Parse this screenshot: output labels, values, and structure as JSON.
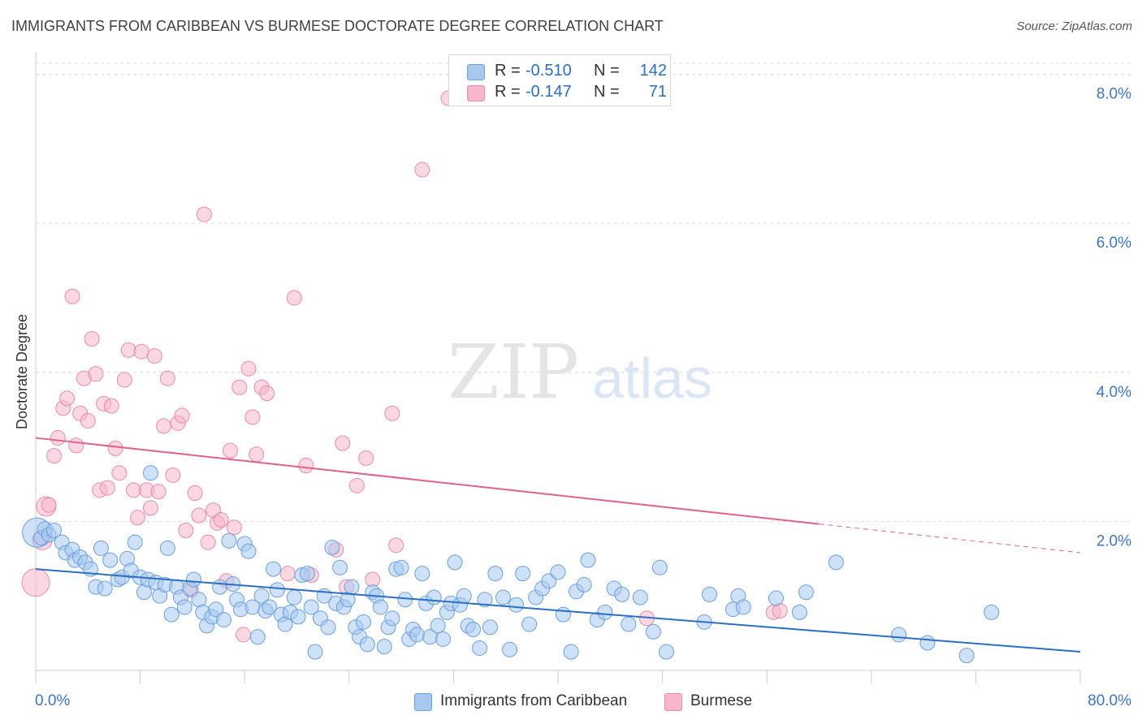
{
  "title": "IMMIGRANTS FROM CARIBBEAN VS BURMESE DOCTORATE DEGREE CORRELATION CHART",
  "source": "Source: ZipAtlas.com",
  "watermark": {
    "zip": "ZIP",
    "atlas": "atlas"
  },
  "legend": {
    "rows": [
      {
        "r_label": "R =",
        "r_value": "-0.510",
        "n_label": "N =",
        "n_value": "142"
      },
      {
        "r_label": "R =",
        "r_value": "-0.147",
        "n_label": "N =",
        "n_value": "71"
      }
    ]
  },
  "bottom_legend": [
    "Immigrants from Caribbean",
    "Burmese"
  ],
  "colors": {
    "blue_fill": "#a8c8ef",
    "blue_stroke": "#6a9fdd",
    "blue_line": "#2a6ec6",
    "pink_fill": "#f7b6cb",
    "pink_stroke": "#e98aa9",
    "pink_line": "#e0628c",
    "axis_text": "#3f74c9",
    "grid": "#dddddd"
  },
  "chart_data": {
    "type": "scatter",
    "title": "IMMIGRANTS FROM CARIBBEAN VS BURMESE DOCTORATE DEGREE CORRELATION CHART",
    "xlabel": "",
    "ylabel": "Doctorate Degree",
    "xlim": [
      0,
      80
    ],
    "ylim": [
      0,
      8.3
    ],
    "x_ticks": [
      "0.0%",
      "80.0%"
    ],
    "y_ticks": [
      {
        "value": 2,
        "label": "2.0%"
      },
      {
        "value": 4,
        "label": "4.0%"
      },
      {
        "value": 6,
        "label": "6.0%"
      },
      {
        "value": 8,
        "label": "8.0%"
      }
    ],
    "series": [
      {
        "name": "Immigrants from Caribbean",
        "color": "blue",
        "r": -0.51,
        "n": 142,
        "trend": {
          "x": [
            0,
            80
          ],
          "y": [
            1.36,
            0.25
          ],
          "dashed_from": null
        },
        "points": [
          [
            0.1,
            1.85
          ],
          [
            0.4,
            1.78
          ],
          [
            0.7,
            1.9
          ],
          [
            1.0,
            1.82
          ],
          [
            1.4,
            1.88
          ],
          [
            2.0,
            1.72
          ],
          [
            2.3,
            1.58
          ],
          [
            2.8,
            1.62
          ],
          [
            3.0,
            1.48
          ],
          [
            3.4,
            1.52
          ],
          [
            3.8,
            1.45
          ],
          [
            4.2,
            1.36
          ],
          [
            4.6,
            1.12
          ],
          [
            5.0,
            1.64
          ],
          [
            5.3,
            1.1
          ],
          [
            5.7,
            1.48
          ],
          [
            6.3,
            1.22
          ],
          [
            6.6,
            1.25
          ],
          [
            7.0,
            1.5
          ],
          [
            7.3,
            1.34
          ],
          [
            7.6,
            1.72
          ],
          [
            8.0,
            1.25
          ],
          [
            8.3,
            1.05
          ],
          [
            8.6,
            1.22
          ],
          [
            8.8,
            2.65
          ],
          [
            9.2,
            1.18
          ],
          [
            9.5,
            1.0
          ],
          [
            9.9,
            1.15
          ],
          [
            10.1,
            1.64
          ],
          [
            10.4,
            0.75
          ],
          [
            10.8,
            1.12
          ],
          [
            11.1,
            0.98
          ],
          [
            11.4,
            0.85
          ],
          [
            11.8,
            1.1
          ],
          [
            12.1,
            1.22
          ],
          [
            12.5,
            0.95
          ],
          [
            12.8,
            0.78
          ],
          [
            13.1,
            0.6
          ],
          [
            13.5,
            0.72
          ],
          [
            13.8,
            0.82
          ],
          [
            14.1,
            1.12
          ],
          [
            14.4,
            0.68
          ],
          [
            14.8,
            1.74
          ],
          [
            15.1,
            1.16
          ],
          [
            15.4,
            0.95
          ],
          [
            15.7,
            0.82
          ],
          [
            16.0,
            1.7
          ],
          [
            16.3,
            1.6
          ],
          [
            16.6,
            0.85
          ],
          [
            17.0,
            0.45
          ],
          [
            17.3,
            1.0
          ],
          [
            17.6,
            0.8
          ],
          [
            17.9,
            0.85
          ],
          [
            18.2,
            1.36
          ],
          [
            18.5,
            1.08
          ],
          [
            18.8,
            0.75
          ],
          [
            19.1,
            0.62
          ],
          [
            19.5,
            0.78
          ],
          [
            19.8,
            0.98
          ],
          [
            20.1,
            0.72
          ],
          [
            20.4,
            1.28
          ],
          [
            20.8,
            1.3
          ],
          [
            21.1,
            0.85
          ],
          [
            21.4,
            0.25
          ],
          [
            21.8,
            0.7
          ],
          [
            22.1,
            1.0
          ],
          [
            22.4,
            0.58
          ],
          [
            22.7,
            1.65
          ],
          [
            23.0,
            0.9
          ],
          [
            23.3,
            1.38
          ],
          [
            23.6,
            0.85
          ],
          [
            23.9,
            0.95
          ],
          [
            24.2,
            1.12
          ],
          [
            24.5,
            0.58
          ],
          [
            24.8,
            0.45
          ],
          [
            25.1,
            0.65
          ],
          [
            25.4,
            0.35
          ],
          [
            25.8,
            1.05
          ],
          [
            26.1,
            1.0
          ],
          [
            26.4,
            0.85
          ],
          [
            26.7,
            0.32
          ],
          [
            27.0,
            0.58
          ],
          [
            27.3,
            0.7
          ],
          [
            27.6,
            1.36
          ],
          [
            28.0,
            1.38
          ],
          [
            28.3,
            0.95
          ],
          [
            28.6,
            0.42
          ],
          [
            28.9,
            0.55
          ],
          [
            29.2,
            0.48
          ],
          [
            29.6,
            1.3
          ],
          [
            29.9,
            0.9
          ],
          [
            30.2,
            0.45
          ],
          [
            30.5,
            0.98
          ],
          [
            30.8,
            0.6
          ],
          [
            31.2,
            0.42
          ],
          [
            31.5,
            0.78
          ],
          [
            31.8,
            0.9
          ],
          [
            32.1,
            1.45
          ],
          [
            32.5,
            0.88
          ],
          [
            32.8,
            1.0
          ],
          [
            33.1,
            0.6
          ],
          [
            33.5,
            0.55
          ],
          [
            34.0,
            0.3
          ],
          [
            34.4,
            0.95
          ],
          [
            34.8,
            0.58
          ],
          [
            35.2,
            1.3
          ],
          [
            35.8,
            0.98
          ],
          [
            36.3,
            0.28
          ],
          [
            36.8,
            0.88
          ],
          [
            37.3,
            1.3
          ],
          [
            37.8,
            0.62
          ],
          [
            38.3,
            0.98
          ],
          [
            38.8,
            1.1
          ],
          [
            39.3,
            1.2
          ],
          [
            40.0,
            1.32
          ],
          [
            40.4,
            0.75
          ],
          [
            41.0,
            0.25
          ],
          [
            41.4,
            1.06
          ],
          [
            42.0,
            1.15
          ],
          [
            42.3,
            1.48
          ],
          [
            43.0,
            0.68
          ],
          [
            43.6,
            0.78
          ],
          [
            44.3,
            1.1
          ],
          [
            44.9,
            1.02
          ],
          [
            45.4,
            0.62
          ],
          [
            46.3,
            0.98
          ],
          [
            47.3,
            0.52
          ],
          [
            47.8,
            1.38
          ],
          [
            48.3,
            0.25
          ],
          [
            51.2,
            0.65
          ],
          [
            51.6,
            1.02
          ],
          [
            53.4,
            0.82
          ],
          [
            53.8,
            1.0
          ],
          [
            54.2,
            0.85
          ],
          [
            56.7,
            0.97
          ],
          [
            58.5,
            0.78
          ],
          [
            59.0,
            1.05
          ],
          [
            61.3,
            1.45
          ],
          [
            66.1,
            0.48
          ],
          [
            68.3,
            0.37
          ],
          [
            71.3,
            0.2
          ],
          [
            73.2,
            0.78
          ]
        ]
      },
      {
        "name": "Burmese",
        "color": "pink",
        "r": -0.147,
        "n": 71,
        "trend": {
          "x": [
            0,
            80
          ],
          "y": [
            3.12,
            1.58
          ],
          "dashed_from": 60
        },
        "points": [
          [
            0.0,
            1.18
          ],
          [
            0.5,
            1.75
          ],
          [
            0.8,
            2.2
          ],
          [
            1.0,
            2.22
          ],
          [
            1.4,
            2.88
          ],
          [
            1.7,
            3.12
          ],
          [
            2.1,
            3.52
          ],
          [
            2.4,
            3.65
          ],
          [
            2.8,
            5.02
          ],
          [
            3.1,
            3.02
          ],
          [
            3.4,
            3.45
          ],
          [
            3.7,
            3.92
          ],
          [
            4.0,
            3.35
          ],
          [
            4.3,
            4.45
          ],
          [
            4.6,
            3.98
          ],
          [
            4.9,
            2.42
          ],
          [
            5.2,
            3.58
          ],
          [
            5.5,
            2.45
          ],
          [
            5.8,
            3.55
          ],
          [
            6.1,
            2.98
          ],
          [
            6.4,
            2.65
          ],
          [
            6.8,
            3.9
          ],
          [
            7.1,
            4.3
          ],
          [
            7.5,
            2.42
          ],
          [
            7.8,
            2.05
          ],
          [
            8.1,
            4.28
          ],
          [
            8.5,
            2.42
          ],
          [
            8.8,
            2.18
          ],
          [
            9.1,
            4.22
          ],
          [
            9.4,
            2.4
          ],
          [
            9.8,
            3.28
          ],
          [
            10.1,
            3.92
          ],
          [
            10.5,
            2.62
          ],
          [
            10.9,
            3.32
          ],
          [
            11.2,
            3.42
          ],
          [
            11.5,
            1.88
          ],
          [
            11.9,
            1.08
          ],
          [
            12.2,
            2.38
          ],
          [
            12.5,
            2.08
          ],
          [
            12.9,
            6.12
          ],
          [
            13.2,
            1.72
          ],
          [
            13.6,
            2.15
          ],
          [
            13.9,
            1.98
          ],
          [
            14.2,
            2.02
          ],
          [
            14.6,
            1.2
          ],
          [
            14.9,
            2.95
          ],
          [
            15.2,
            1.92
          ],
          [
            15.6,
            3.8
          ],
          [
            15.9,
            0.48
          ],
          [
            16.3,
            4.05
          ],
          [
            16.6,
            3.4
          ],
          [
            16.9,
            2.9
          ],
          [
            17.3,
            3.8
          ],
          [
            17.7,
            3.72
          ],
          [
            19.3,
            1.3
          ],
          [
            19.8,
            5.0
          ],
          [
            20.7,
            2.75
          ],
          [
            21.1,
            1.28
          ],
          [
            23.0,
            1.62
          ],
          [
            23.5,
            3.05
          ],
          [
            23.8,
            1.12
          ],
          [
            24.6,
            2.48
          ],
          [
            25.3,
            2.85
          ],
          [
            25.8,
            1.22
          ],
          [
            27.3,
            3.45
          ],
          [
            27.6,
            1.68
          ],
          [
            29.6,
            6.72
          ],
          [
            31.6,
            7.68
          ],
          [
            46.8,
            0.7
          ],
          [
            56.5,
            0.78
          ],
          [
            57.0,
            0.8
          ]
        ]
      }
    ]
  }
}
